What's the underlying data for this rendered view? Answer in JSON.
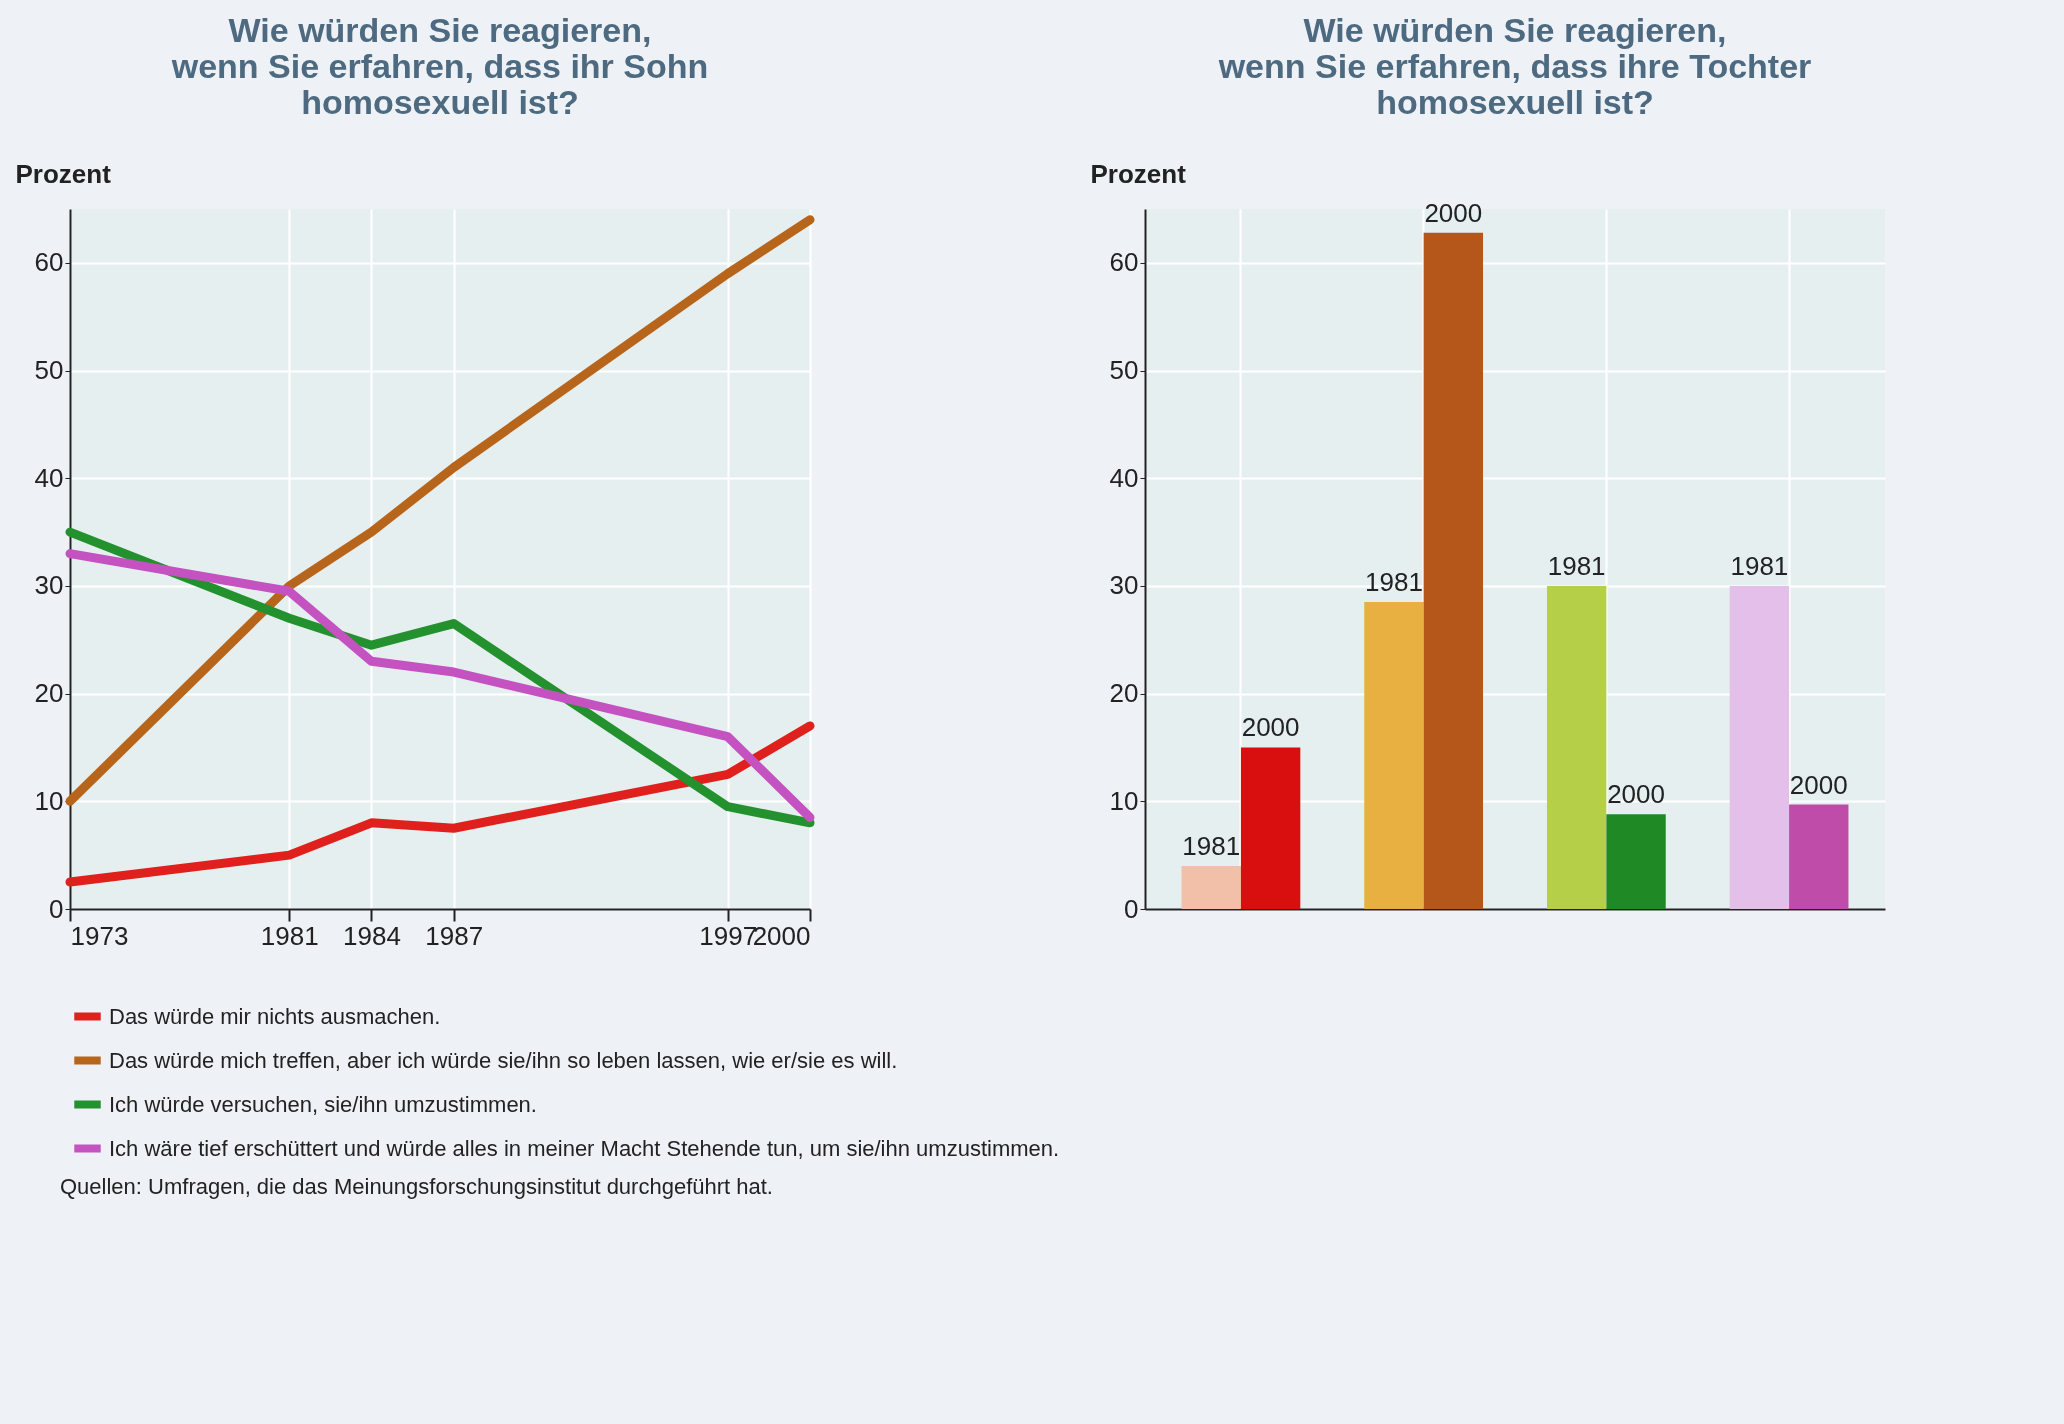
{
  "chart_data": [
    {
      "type": "line",
      "title": "Wie würden Sie reagieren,\nwenn Sie erfahren, dass ihr Sohn\nhomosexuell ist?",
      "ylabel": "Prozent",
      "x": [
        1973,
        1981,
        1984,
        1987,
        1997,
        2000
      ],
      "xlim": [
        1973,
        2000
      ],
      "xticks": [
        1973,
        1981,
        1984,
        1987,
        1997,
        2000
      ],
      "ylim": [
        0,
        65
      ],
      "yticks": [
        0,
        10,
        20,
        30,
        40,
        50,
        60
      ],
      "grid": true,
      "legend": "bottom",
      "marker": "none",
      "line_style": "solid",
      "series": [
        {
          "name": "Das würde mir nichts ausmachen.",
          "color": "#e0201c",
          "values": [
            2.5,
            5,
            8,
            7.5,
            12.5,
            17
          ]
        },
        {
          "name": "Das würde mich treffen, aber ich würde sie/ihn so leben lassen, wie er/sie es will.",
          "color": "#b8651c",
          "values": [
            10,
            30,
            35,
            41,
            59,
            64
          ]
        },
        {
          "name": "Ich würde versuchen, sie/ihn umzustimmen.",
          "color": "#23912e",
          "values": [
            35,
            27,
            24.5,
            26.5,
            9.5,
            8
          ]
        },
        {
          "name": "Ich wäre tief erschüttert und würde alles in meiner Macht Stehende tun, um sie/ihn umzustimmen.",
          "color": "#c452c0",
          "values": [
            33,
            29.5,
            23,
            22,
            16,
            8.5
          ]
        }
      ],
      "annotations": [
        "Quellen: Umfragen, die das Meinungsforschungsinstitut durchgeführt hat."
      ]
    },
    {
      "type": "bar",
      "title": "Wie würden Sie reagieren,\nwenn Sie erfahren, dass ihre Tochter\nhomosexuell ist?",
      "ylabel": "Prozent",
      "categories": [
        null,
        null,
        null,
        null
      ],
      "ylim": [
        0,
        65
      ],
      "yticks": [
        0,
        10,
        20,
        30,
        40,
        50,
        60
      ],
      "grid": true,
      "tick_labels": "y",
      "series": [
        {
          "name": "1981",
          "colors": [
            "#f2c0a8",
            "#e8b040",
            "#b5cf48",
            "#e3bfe9"
          ],
          "values": [
            4,
            28.5,
            30,
            30
          ]
        },
        {
          "name": "2000",
          "colors": [
            "#d90f0f",
            "#b5561a",
            "#1f8a25",
            "#bf4ca8"
          ],
          "values": [
            15,
            62.8,
            8.8,
            9.7
          ]
        }
      ]
    }
  ]
}
